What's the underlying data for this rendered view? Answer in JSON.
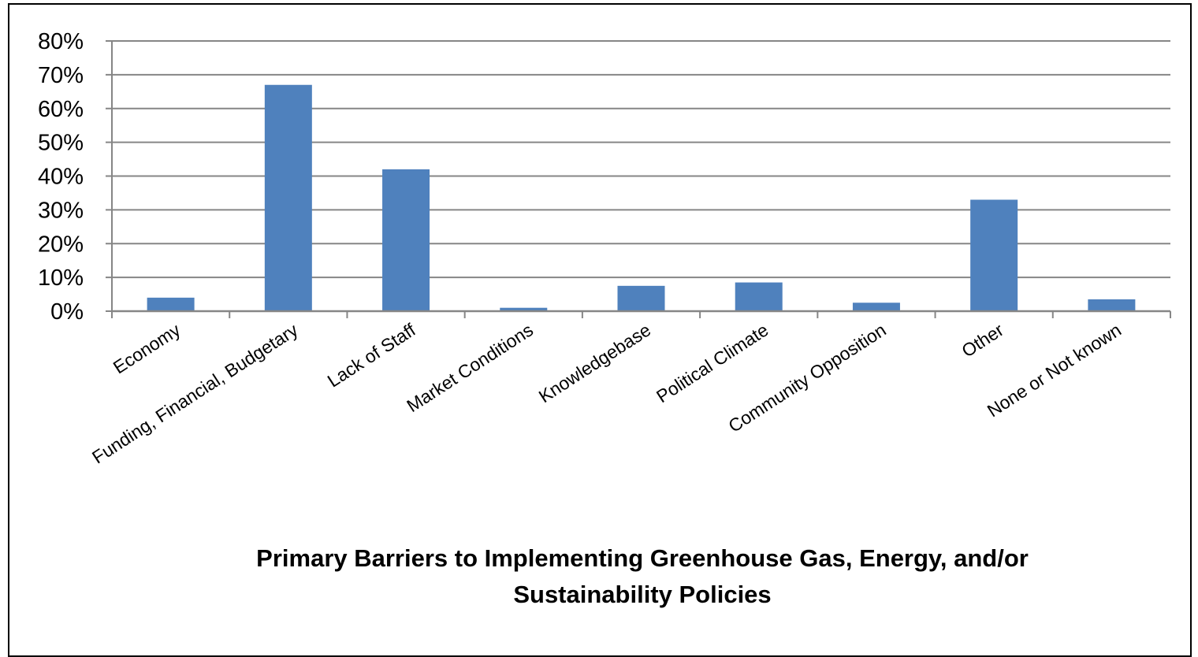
{
  "chart_data": {
    "type": "bar",
    "title_lines": [
      "Primary Barriers to Implementing Greenhouse Gas, Energy, and/or",
      "Sustainability Policies"
    ],
    "categories": [
      "Economy",
      "Funding, Financial, Budgetary",
      "Lack of Staff",
      "Market Conditions",
      "Knowledgebase",
      "Political Climate",
      "Community Opposition",
      "Other",
      "None or Not known"
    ],
    "values": [
      4,
      67,
      42,
      1,
      7.5,
      8.5,
      2.5,
      33,
      3.5
    ],
    "ylim": [
      0,
      80
    ],
    "yticks": [
      0,
      10,
      20,
      30,
      40,
      50,
      60,
      70,
      80
    ],
    "ytick_labels": [
      "0%",
      "10%",
      "20%",
      "30%",
      "40%",
      "50%",
      "60%",
      "70%",
      "80%"
    ],
    "grid": true,
    "legend": "none",
    "bar_color": "#4f81bd",
    "grid_color": "#868686"
  }
}
